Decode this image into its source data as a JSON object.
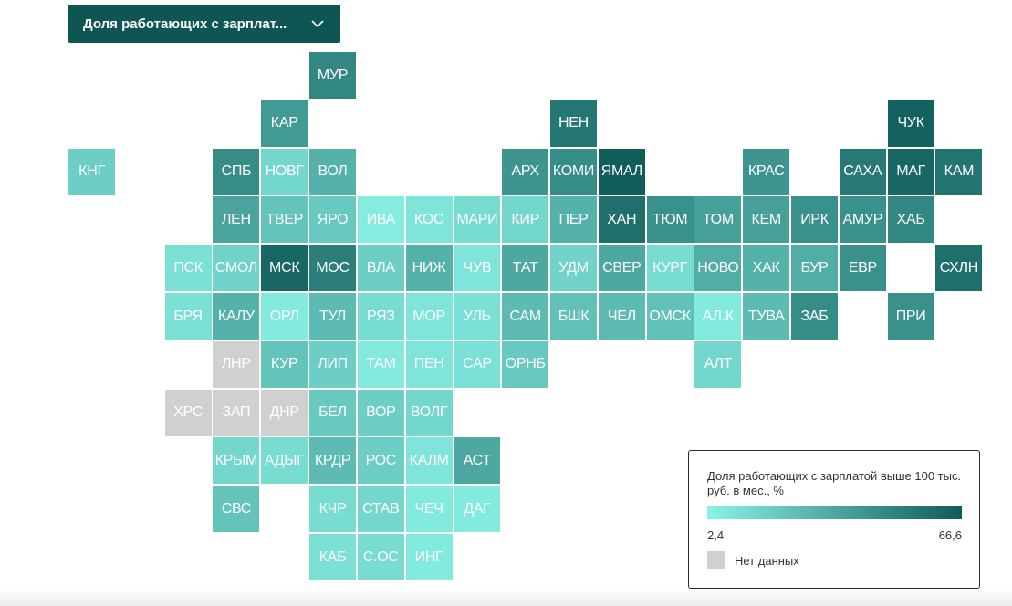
{
  "selector": {
    "label": "Доля работающих с зарплат..."
  },
  "legend": {
    "title": "Доля работающих с зарплатой выше 100 тыс. руб. в мес., %",
    "min_label": "2,4",
    "max_label": "66,6",
    "min_value": 2.4,
    "max_value": 66.6,
    "color_min": "#8af2e6",
    "color_max": "#0f5c5a",
    "nodata_label": "Нет данных",
    "nodata_color": "#d0d0d0"
  },
  "regions": [
    {
      "code": "МУР",
      "col": 5,
      "row": 0,
      "value": 48
    },
    {
      "code": "КАР",
      "col": 4,
      "row": 1,
      "value": 40
    },
    {
      "code": "НЕН",
      "col": 10,
      "row": 1,
      "value": 55
    },
    {
      "code": "ЧУК",
      "col": 17,
      "row": 1,
      "value": 64
    },
    {
      "code": "КНГ",
      "col": 0,
      "row": 2,
      "value": 18
    },
    {
      "code": "СПБ",
      "col": 3,
      "row": 2,
      "value": 46
    },
    {
      "code": "НОВГ",
      "col": 4,
      "row": 2,
      "value": 14
    },
    {
      "code": "ВОЛ",
      "col": 5,
      "row": 2,
      "value": 30
    },
    {
      "code": "АРХ",
      "col": 9,
      "row": 2,
      "value": 42
    },
    {
      "code": "КОМИ",
      "col": 10,
      "row": 2,
      "value": 46
    },
    {
      "code": "ЯМАЛ",
      "col": 11,
      "row": 2,
      "value": 66
    },
    {
      "code": "КРАС",
      "col": 14,
      "row": 2,
      "value": 42
    },
    {
      "code": "САХА",
      "col": 16,
      "row": 2,
      "value": 54
    },
    {
      "code": "МАГ",
      "col": 17,
      "row": 2,
      "value": 62
    },
    {
      "code": "КАМ",
      "col": 18,
      "row": 2,
      "value": 56
    },
    {
      "code": "ЛЕН",
      "col": 3,
      "row": 3,
      "value": 36
    },
    {
      "code": "ТВЕР",
      "col": 4,
      "row": 3,
      "value": 22
    },
    {
      "code": "ЯРО",
      "col": 5,
      "row": 3,
      "value": 20
    },
    {
      "code": "ИВА",
      "col": 6,
      "row": 3,
      "value": 5
    },
    {
      "code": "КОС",
      "col": 7,
      "row": 3,
      "value": 8
    },
    {
      "code": "МАРИ",
      "col": 8,
      "row": 3,
      "value": 12
    },
    {
      "code": "КИР",
      "col": 9,
      "row": 3,
      "value": 14
    },
    {
      "code": "ПЕР",
      "col": 10,
      "row": 3,
      "value": 30
    },
    {
      "code": "ХАН",
      "col": 11,
      "row": 3,
      "value": 58
    },
    {
      "code": "ТЮМ",
      "col": 12,
      "row": 3,
      "value": 44
    },
    {
      "code": "ТОМ",
      "col": 13,
      "row": 3,
      "value": 38
    },
    {
      "code": "КЕМ",
      "col": 14,
      "row": 3,
      "value": 38
    },
    {
      "code": "ИРК",
      "col": 15,
      "row": 3,
      "value": 44
    },
    {
      "code": "АМУР",
      "col": 16,
      "row": 3,
      "value": 44
    },
    {
      "code": "ХАБ",
      "col": 17,
      "row": 3,
      "value": 48
    },
    {
      "code": "ПСК",
      "col": 2,
      "row": 4,
      "value": 10
    },
    {
      "code": "СМОЛ",
      "col": 3,
      "row": 4,
      "value": 16
    },
    {
      "code": "МСК",
      "col": 4,
      "row": 4,
      "value": 62
    },
    {
      "code": "МОС",
      "col": 5,
      "row": 4,
      "value": 52
    },
    {
      "code": "ВЛА",
      "col": 6,
      "row": 4,
      "value": 18
    },
    {
      "code": "НИЖ",
      "col": 7,
      "row": 4,
      "value": 30
    },
    {
      "code": "ЧУВ",
      "col": 8,
      "row": 4,
      "value": 8
    },
    {
      "code": "ТАТ",
      "col": 9,
      "row": 4,
      "value": 34
    },
    {
      "code": "УДМ",
      "col": 10,
      "row": 4,
      "value": 16
    },
    {
      "code": "СВЕР",
      "col": 11,
      "row": 4,
      "value": 34
    },
    {
      "code": "КУРГ",
      "col": 12,
      "row": 4,
      "value": 12
    },
    {
      "code": "НОВО",
      "col": 13,
      "row": 4,
      "value": 32
    },
    {
      "code": "ХАК",
      "col": 14,
      "row": 4,
      "value": 30
    },
    {
      "code": "БУР",
      "col": 15,
      "row": 4,
      "value": 32
    },
    {
      "code": "ЕВР",
      "col": 16,
      "row": 4,
      "value": 44
    },
    {
      "code": "СХЛН",
      "col": 18,
      "row": 4,
      "value": 58
    },
    {
      "code": "БРЯ",
      "col": 2,
      "row": 5,
      "value": 10
    },
    {
      "code": "КАЛУ",
      "col": 3,
      "row": 5,
      "value": 30
    },
    {
      "code": "ОРЛ",
      "col": 4,
      "row": 5,
      "value": 6
    },
    {
      "code": "ТУЛ",
      "col": 5,
      "row": 5,
      "value": 26
    },
    {
      "code": "РЯЗ",
      "col": 6,
      "row": 5,
      "value": 12
    },
    {
      "code": "МОР",
      "col": 7,
      "row": 5,
      "value": 8
    },
    {
      "code": "УЛЬ",
      "col": 8,
      "row": 5,
      "value": 10
    },
    {
      "code": "САМ",
      "col": 9,
      "row": 5,
      "value": 26
    },
    {
      "code": "БШК",
      "col": 10,
      "row": 5,
      "value": 24
    },
    {
      "code": "ЧЕЛ",
      "col": 11,
      "row": 5,
      "value": 26
    },
    {
      "code": "ОМСК",
      "col": 12,
      "row": 5,
      "value": 24
    },
    {
      "code": "АЛ.К",
      "col": 13,
      "row": 5,
      "value": 6
    },
    {
      "code": "ТУВА",
      "col": 14,
      "row": 5,
      "value": 26
    },
    {
      "code": "ЗАБ",
      "col": 15,
      "row": 5,
      "value": 46
    },
    {
      "code": "ПРИ",
      "col": 17,
      "row": 5,
      "value": 44
    },
    {
      "code": "ЛНР",
      "col": 3,
      "row": 6,
      "value": null
    },
    {
      "code": "КУР",
      "col": 4,
      "row": 6,
      "value": 22
    },
    {
      "code": "ЛИП",
      "col": 5,
      "row": 6,
      "value": 18
    },
    {
      "code": "ТАМ",
      "col": 6,
      "row": 6,
      "value": 6
    },
    {
      "code": "ПЕН",
      "col": 7,
      "row": 6,
      "value": 8
    },
    {
      "code": "САР",
      "col": 8,
      "row": 6,
      "value": 10
    },
    {
      "code": "ОРНБ",
      "col": 9,
      "row": 6,
      "value": 20
    },
    {
      "code": "АЛТ",
      "col": 13,
      "row": 6,
      "value": 14
    },
    {
      "code": "ХРС",
      "col": 2,
      "row": 7,
      "value": null
    },
    {
      "code": "ЗАП",
      "col": 3,
      "row": 7,
      "value": null
    },
    {
      "code": "ДНР",
      "col": 4,
      "row": 7,
      "value": null
    },
    {
      "code": "БЕЛ",
      "col": 5,
      "row": 7,
      "value": 20
    },
    {
      "code": "ВОР",
      "col": 6,
      "row": 7,
      "value": 18
    },
    {
      "code": "ВОЛГ",
      "col": 7,
      "row": 7,
      "value": 14
    },
    {
      "code": "КРЫМ",
      "col": 3,
      "row": 8,
      "value": 14
    },
    {
      "code": "АДЫГ",
      "col": 4,
      "row": 8,
      "value": 12
    },
    {
      "code": "КРДР",
      "col": 5,
      "row": 8,
      "value": 26
    },
    {
      "code": "РОС",
      "col": 6,
      "row": 8,
      "value": 18
    },
    {
      "code": "КАЛМ",
      "col": 7,
      "row": 8,
      "value": 8
    },
    {
      "code": "АСТ",
      "col": 8,
      "row": 8,
      "value": 34
    },
    {
      "code": "СВС",
      "col": 3,
      "row": 9,
      "value": 22
    },
    {
      "code": "КЧР",
      "col": 5,
      "row": 9,
      "value": 12
    },
    {
      "code": "СТАВ",
      "col": 6,
      "row": 9,
      "value": 14
    },
    {
      "code": "ЧЕЧ",
      "col": 7,
      "row": 9,
      "value": 6
    },
    {
      "code": "ДАГ",
      "col": 8,
      "row": 9,
      "value": 6
    },
    {
      "code": "КАБ",
      "col": 5,
      "row": 10,
      "value": 10
    },
    {
      "code": "С.ОС",
      "col": 6,
      "row": 10,
      "value": 12
    },
    {
      "code": "ИНГ",
      "col": 7,
      "row": 10,
      "value": 6
    }
  ]
}
